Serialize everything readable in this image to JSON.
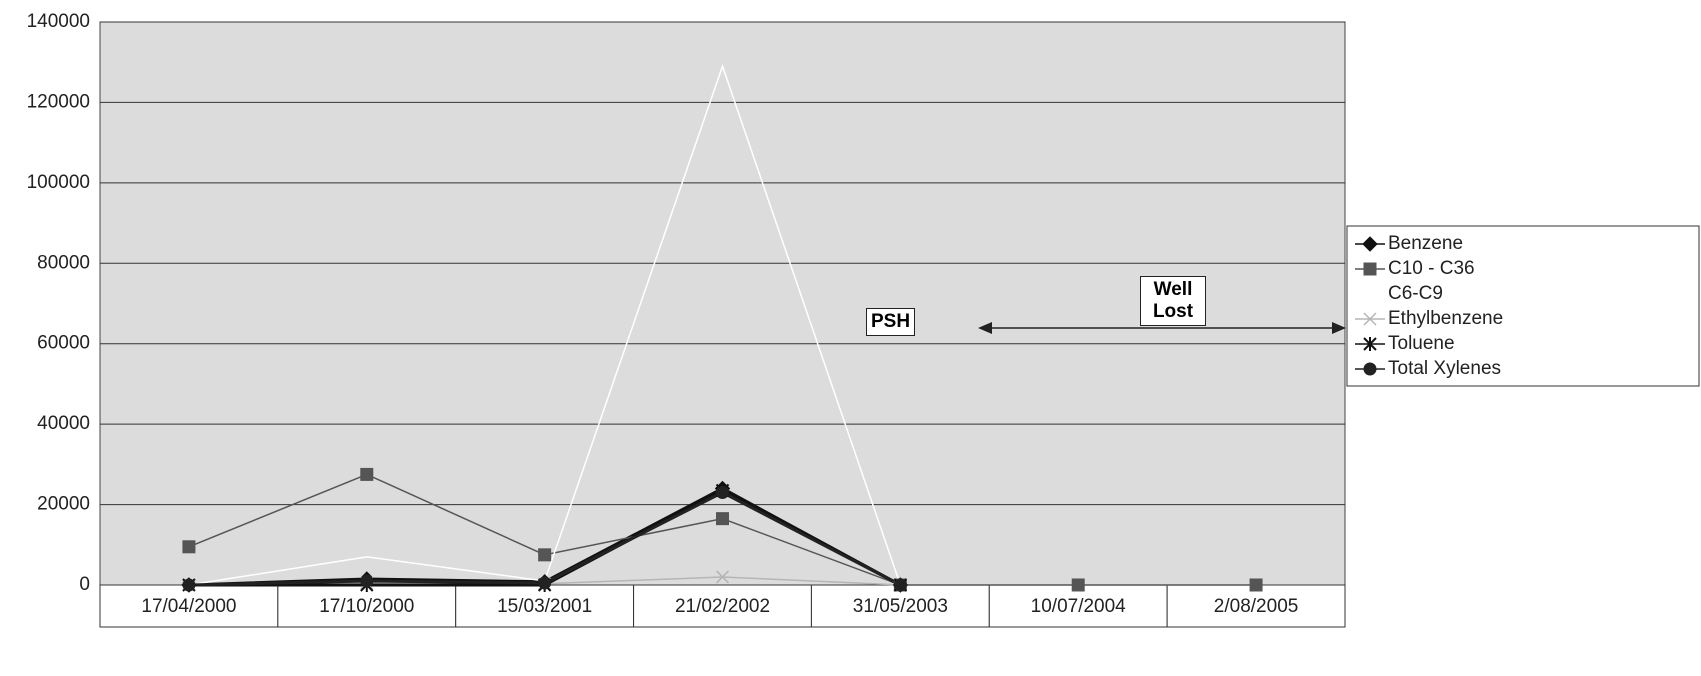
{
  "chart_data": {
    "type": "line",
    "categories": [
      "17/04/2000",
      "17/10/2000",
      "15/03/2001",
      "21/02/2002",
      "31/05/2003",
      "10/07/2004",
      "2/08/2005"
    ],
    "series": [
      {
        "name": "Benzene",
        "color": "#111111",
        "marker": "diamond",
        "values": [
          0,
          1500,
          800,
          24000,
          0,
          null,
          null
        ]
      },
      {
        "name": "C10 - C36",
        "color": "#555555",
        "marker": "square",
        "values": [
          9500,
          27500,
          7500,
          16500,
          0,
          0,
          0
        ]
      },
      {
        "name": "C6-C9",
        "color": "#ffffff",
        "marker": "none",
        "values": [
          0,
          7000,
          1000,
          129000,
          0,
          null,
          null
        ]
      },
      {
        "name": "Ethylbenzene",
        "color": "#b5b5b5",
        "marker": "x",
        "values": [
          0,
          500,
          300,
          2000,
          0,
          null,
          null
        ]
      },
      {
        "name": "Toluene",
        "color": "#111111",
        "marker": "star",
        "values": [
          0,
          0,
          0,
          23500,
          0,
          null,
          null
        ]
      },
      {
        "name": "Total Xylenes",
        "color": "#222222",
        "marker": "circle",
        "values": [
          0,
          1000,
          500,
          23000,
          0,
          null,
          null
        ]
      }
    ],
    "annotations": [
      "PSH",
      "Well Lost"
    ],
    "ylim": [
      0,
      140000
    ],
    "yticks": [
      0,
      20000,
      40000,
      60000,
      80000,
      100000,
      120000,
      140000
    ],
    "grid": true
  }
}
